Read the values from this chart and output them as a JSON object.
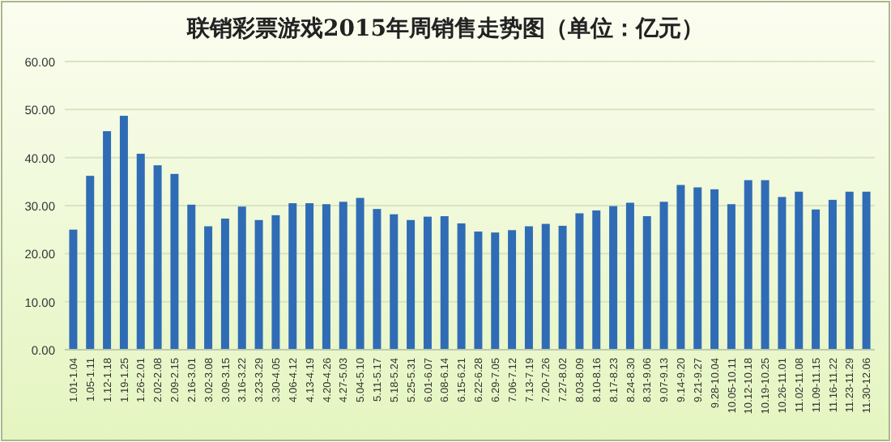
{
  "chart_data": {
    "type": "bar",
    "title": "联销彩票游戏2015年周销售走势图（单位：亿元）",
    "categories": [
      "1.01-1.04",
      "1.05-1.11",
      "1.12-1.18",
      "1.19-1.25",
      "1.26-2.01",
      "2.02-2.08",
      "2.09-2.15",
      "2.16-3.01",
      "3.02-3.08",
      "3.09-3.15",
      "3.16-3.22",
      "3.23-3.29",
      "3.30-4.05",
      "4.06-4.12",
      "4.13-4.19",
      "4.20-4.26",
      "4.27-5.03",
      "5.04-5.10",
      "5.11-5.17",
      "5.18-5.24",
      "5.25-5.31",
      "6.01-6.07",
      "6.08-6.14",
      "6.15-6.21",
      "6.22-6.28",
      "6.29-7.05",
      "7.06-7.12",
      "7.13-7.19",
      "7.20-7.26",
      "7.27-8.02",
      "8.03-8.09",
      "8.10-8.16",
      "8.17-8.23",
      "8.24-8.30",
      "8.31-9.06",
      "9.07-9.13",
      "9.14-9.20",
      "9.21-9.27",
      "9.28-10.04",
      "10.05-10.11",
      "10.12-10.18",
      "10.19-10.25",
      "10.26-11.01",
      "11.02-11.08",
      "11.09-11.15",
      "11.16-11.22",
      "11.23-11.29",
      "11.30-12.06"
    ],
    "values": [
      25.0,
      36.2,
      45.5,
      48.7,
      40.8,
      38.4,
      36.6,
      30.2,
      25.7,
      27.3,
      29.8,
      27.0,
      28.0,
      30.5,
      30.5,
      30.3,
      30.8,
      31.6,
      29.3,
      28.2,
      27.0,
      27.7,
      27.8,
      26.3,
      24.6,
      24.4,
      24.9,
      25.7,
      26.2,
      25.8,
      28.4,
      29.0,
      29.9,
      30.6,
      27.8,
      30.8,
      34.3,
      33.8,
      33.4,
      30.3,
      35.3,
      35.3,
      31.8,
      32.9,
      29.2,
      31.2,
      32.9,
      32.9
    ],
    "color": "#2f6cb5",
    "ylim": [
      0,
      60
    ],
    "yticks": [
      {
        "value": 0,
        "label": "0.00"
      },
      {
        "value": 10,
        "label": "10.00"
      },
      {
        "value": 20,
        "label": "20.00"
      },
      {
        "value": 30,
        "label": "30.00"
      },
      {
        "value": 40,
        "label": "40.00"
      },
      {
        "value": 50,
        "label": "50.00"
      },
      {
        "value": 60,
        "label": "60.00"
      }
    ],
    "grid": "y"
  }
}
